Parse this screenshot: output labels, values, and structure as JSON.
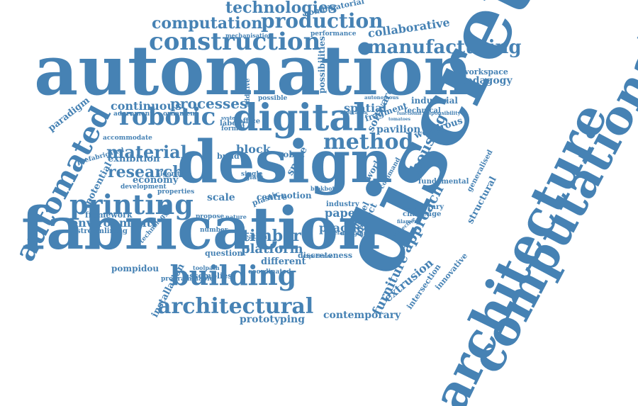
{
  "palette": {
    "word_color": "#4682b4",
    "background": "#ffffff"
  },
  "words": [
    "automation",
    "discrete",
    "computational",
    "architecture",
    "fabrication",
    "design",
    "digital",
    "building",
    "automated",
    "robotic",
    "construction",
    "architectural",
    "printing",
    "method",
    "manufacturing",
    "production",
    "computation",
    "technologies",
    "material",
    "research",
    "processes",
    "timber",
    "platform",
    "approach",
    "collaborative",
    "housing",
    "furniture",
    "extrusion",
    "practice",
    "continuous",
    "environment",
    "paper",
    "potential",
    "pedagogy",
    "workspace",
    "exhibition",
    "prototyping",
    "contemporary",
    "installation",
    "different",
    "pompidou",
    "paradigm",
    "block",
    "spatial",
    "software",
    "pavilion",
    "wondrous",
    "scale",
    "industrial",
    "technical",
    "fragment",
    "framework",
    "economy",
    "assemblies",
    "question",
    "streamlining",
    "technology",
    "discreteness",
    "innovative",
    "intersection",
    "structural",
    "generalised",
    "temporary",
    "challenge",
    "fundamental",
    "industry",
    "model",
    "project",
    "space",
    "work",
    "combinatorial",
    "performance",
    "mechanisation",
    "adornment",
    "ornament",
    "accommodate",
    "algorithm",
    "prefabricated",
    "development",
    "properties",
    "robot",
    "build",
    "office",
    "labour",
    "formal",
    "glass",
    "single",
    "number",
    "toolpath",
    "coordinated",
    "programmable",
    "creation",
    "plastic",
    "centre",
    "notion",
    "blokbot",
    "possibilities",
    "possible",
    "additive",
    "command",
    "filament",
    "system",
    "propose",
    "nature",
    "autonomous",
    "responsibility",
    "functional",
    "tomatoes",
    "implication",
    "experience",
    "designing",
    "artefact",
    "perspective"
  ]
}
